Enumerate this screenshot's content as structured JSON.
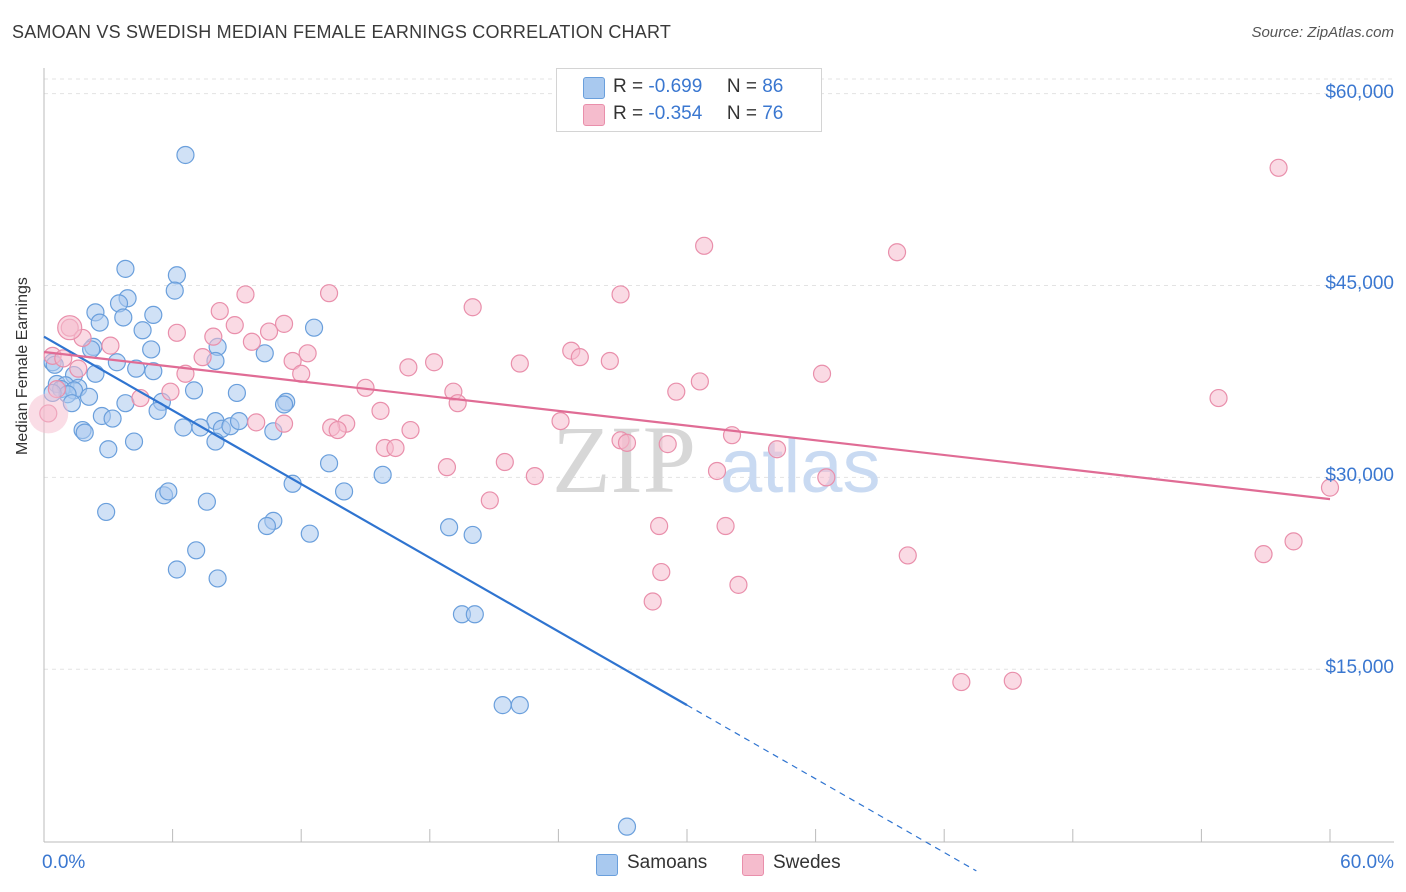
{
  "header": {
    "title": "SAMOAN VS SWEDISH MEDIAN FEMALE EARNINGS CORRELATION CHART",
    "source": "Source: ZipAtlas.com"
  },
  "legend": {
    "samoans": {
      "r_label": "R =",
      "r_value": "-0.699",
      "n_label": "N =",
      "n_value": "86"
    },
    "swedes": {
      "r_label": "R =",
      "r_value": "-0.354",
      "n_label": "N =",
      "n_value": "76"
    }
  },
  "bottom_legend": {
    "samoans": "Samoans",
    "swedes": "Swedes"
  },
  "watermark": {
    "zip": "ZIP",
    "atlas": "atlas"
  },
  "colors": {
    "samoans_fill": "#a9c9ef",
    "samoans_stroke": "#6a9fdc",
    "samoans_line": "#2f74d0",
    "swedes_fill": "#f5bccd",
    "swedes_stroke": "#e98fab",
    "swedes_line": "#e06c95",
    "tick_label": "#3a77d0",
    "grid": "#e3e3e3"
  },
  "chart_data": {
    "type": "scatter",
    "title": "SAMOAN VS SWEDISH MEDIAN FEMALE EARNINGS CORRELATION CHART",
    "xlabel": "",
    "ylabel": "Median Female Earnings",
    "xlim": [
      0,
      60
    ],
    "ylim": [
      1500,
      62000
    ],
    "x_tick_labels": [
      "0.0%",
      "60.0%"
    ],
    "y_ticks": [
      15000,
      30000,
      45000,
      60000
    ],
    "y_tick_labels": [
      "$15,000",
      "$30,000",
      "$45,000",
      "$60,000"
    ],
    "grid": true,
    "legend_position": "top-center",
    "series": [
      {
        "name": "Samoans",
        "r": -0.699,
        "n": 86,
        "trend": {
          "x0": 0,
          "y0": 41000,
          "x1": 30,
          "y1": 12200,
          "dash_to_x": 43.5
        },
        "points": [
          [
            6.6,
            55200
          ],
          [
            3.8,
            46300
          ],
          [
            6.2,
            45800
          ],
          [
            3.9,
            44000
          ],
          [
            6.1,
            44600
          ],
          [
            3.5,
            43600
          ],
          [
            2.4,
            42900
          ],
          [
            3.7,
            42500
          ],
          [
            5.1,
            42700
          ],
          [
            2.6,
            42100
          ],
          [
            4.6,
            41500
          ],
          [
            12.6,
            41700
          ],
          [
            2.3,
            40200
          ],
          [
            2.2,
            40000
          ],
          [
            5.0,
            40000
          ],
          [
            8.1,
            40200
          ],
          [
            10.3,
            39700
          ],
          [
            0.4,
            39000
          ],
          [
            3.4,
            39000
          ],
          [
            0.5,
            38800
          ],
          [
            8.0,
            39100
          ],
          [
            4.3,
            38500
          ],
          [
            5.1,
            38300
          ],
          [
            2.4,
            38100
          ],
          [
            1.4,
            38000
          ],
          [
            0.6,
            37300
          ],
          [
            1.0,
            37200
          ],
          [
            1.6,
            37000
          ],
          [
            0.8,
            36900
          ],
          [
            1.4,
            36800
          ],
          [
            1.1,
            36500
          ],
          [
            0.4,
            36600
          ],
          [
            2.1,
            36300
          ],
          [
            7.0,
            36800
          ],
          [
            9.0,
            36600
          ],
          [
            1.3,
            35800
          ],
          [
            3.8,
            35800
          ],
          [
            5.5,
            35900
          ],
          [
            11.3,
            35900
          ],
          [
            11.2,
            35700
          ],
          [
            2.7,
            34800
          ],
          [
            5.3,
            35200
          ],
          [
            3.2,
            34600
          ],
          [
            8.0,
            34400
          ],
          [
            6.5,
            33900
          ],
          [
            7.3,
            33900
          ],
          [
            8.3,
            33800
          ],
          [
            8.7,
            34000
          ],
          [
            9.1,
            34400
          ],
          [
            1.8,
            33700
          ],
          [
            1.9,
            33500
          ],
          [
            10.7,
            33600
          ],
          [
            4.2,
            32800
          ],
          [
            8.0,
            32800
          ],
          [
            3.0,
            32200
          ],
          [
            13.3,
            31100
          ],
          [
            15.8,
            30200
          ],
          [
            11.6,
            29500
          ],
          [
            5.6,
            28600
          ],
          [
            5.8,
            28900
          ],
          [
            7.6,
            28100
          ],
          [
            14.0,
            28900
          ],
          [
            2.9,
            27300
          ],
          [
            10.7,
            26600
          ],
          [
            10.4,
            26200
          ],
          [
            12.4,
            25600
          ],
          [
            18.9,
            26100
          ],
          [
            20.0,
            25500
          ],
          [
            7.1,
            24300
          ],
          [
            6.2,
            22800
          ],
          [
            8.1,
            22100
          ],
          [
            19.5,
            19300
          ],
          [
            20.1,
            19300
          ],
          [
            21.4,
            12200
          ],
          [
            22.2,
            12200
          ],
          [
            27.2,
            2700
          ]
        ]
      },
      {
        "name": "Swedes",
        "r": -0.354,
        "n": 76,
        "trend": {
          "x0": 0,
          "y0": 39800,
          "x1": 60,
          "y1": 28300
        },
        "points": [
          [
            57.6,
            54200
          ],
          [
            30.8,
            48100
          ],
          [
            39.8,
            47600
          ],
          [
            13.3,
            44400
          ],
          [
            9.4,
            44300
          ],
          [
            26.9,
            44300
          ],
          [
            20.0,
            43300
          ],
          [
            8.2,
            43000
          ],
          [
            11.2,
            42000
          ],
          [
            8.9,
            41900
          ],
          [
            1.2,
            41700
          ],
          [
            6.2,
            41300
          ],
          [
            7.9,
            41000
          ],
          [
            10.5,
            41400
          ],
          [
            9.7,
            40600
          ],
          [
            1.8,
            40900
          ],
          [
            3.1,
            40300
          ],
          [
            24.6,
            39900
          ],
          [
            12.3,
            39700
          ],
          [
            25.0,
            39400
          ],
          [
            7.4,
            39400
          ],
          [
            11.6,
            39100
          ],
          [
            18.2,
            39000
          ],
          [
            22.2,
            38900
          ],
          [
            17.0,
            38600
          ],
          [
            26.4,
            39100
          ],
          [
            0.4,
            39500
          ],
          [
            0.9,
            39300
          ],
          [
            12.0,
            38100
          ],
          [
            6.6,
            38100
          ],
          [
            36.3,
            38100
          ],
          [
            30.6,
            37500
          ],
          [
            1.6,
            38500
          ],
          [
            5.9,
            36700
          ],
          [
            15.0,
            37000
          ],
          [
            19.1,
            36700
          ],
          [
            4.5,
            36200
          ],
          [
            29.5,
            36700
          ],
          [
            19.3,
            35800
          ],
          [
            15.7,
            35200
          ],
          [
            9.9,
            34300
          ],
          [
            11.2,
            34200
          ],
          [
            14.1,
            34200
          ],
          [
            24.1,
            34400
          ],
          [
            13.4,
            33900
          ],
          [
            13.7,
            33700
          ],
          [
            17.1,
            33700
          ],
          [
            32.1,
            33300
          ],
          [
            26.9,
            32900
          ],
          [
            27.2,
            32700
          ],
          [
            29.1,
            32600
          ],
          [
            15.9,
            32300
          ],
          [
            16.4,
            32300
          ],
          [
            34.2,
            32200
          ],
          [
            21.5,
            31200
          ],
          [
            18.8,
            30800
          ],
          [
            31.4,
            30500
          ],
          [
            22.9,
            30100
          ],
          [
            36.5,
            30000
          ],
          [
            20.8,
            28200
          ],
          [
            28.7,
            26200
          ],
          [
            31.8,
            26200
          ],
          [
            54.8,
            36200
          ],
          [
            60.0,
            29200
          ],
          [
            58.3,
            25000
          ],
          [
            56.9,
            24000
          ],
          [
            40.3,
            23900
          ],
          [
            28.8,
            22600
          ],
          [
            32.4,
            21600
          ],
          [
            28.4,
            20300
          ],
          [
            42.8,
            14000
          ],
          [
            45.2,
            14100
          ],
          [
            0.2,
            35000
          ],
          [
            0.6,
            36900
          ]
        ]
      }
    ]
  }
}
